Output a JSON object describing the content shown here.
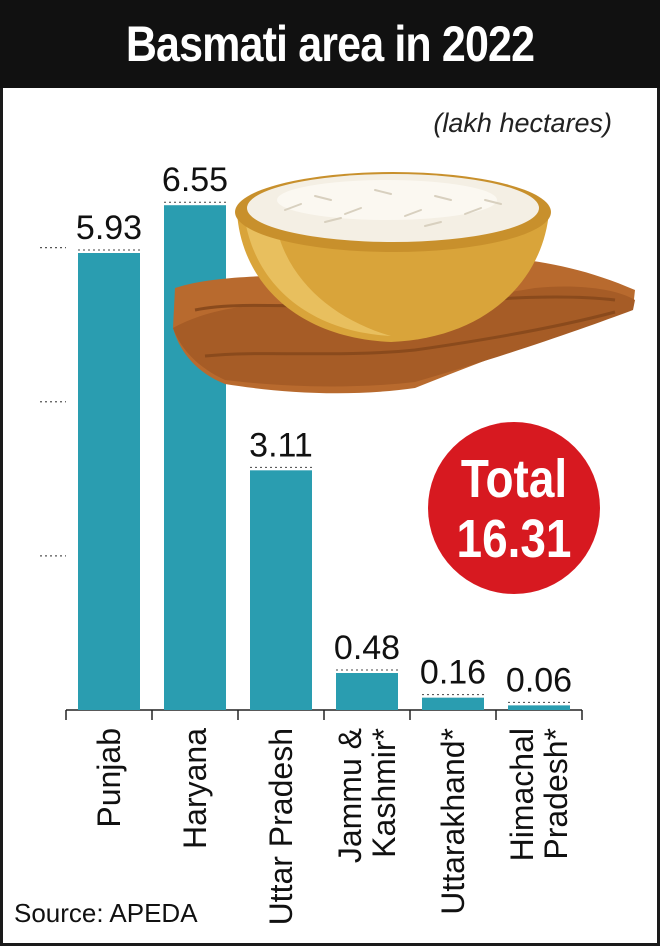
{
  "header": {
    "title": "Basmati area in 2022"
  },
  "unit_note": "(lakh hectares)",
  "total": {
    "label": "Total",
    "value": "16.31"
  },
  "source": "Source: APEDA",
  "colors": {
    "bar": "#2a9db0",
    "badge": "#d71920",
    "title_bg": "#111111"
  },
  "chart_data": {
    "type": "bar",
    "title": "Basmati area in 2022",
    "unit": "(lakh hectares)",
    "categories": [
      "Punjab",
      "Haryana",
      "Uttar Pradesh",
      "Jammu & Kashmir*",
      "Uttarakhand*",
      "Himachal Pradesh*"
    ],
    "category_lines": [
      [
        "Punjab"
      ],
      [
        "Haryana"
      ],
      [
        "Uttar Pradesh"
      ],
      [
        "Jammu &",
        "Kashmir*"
      ],
      [
        "Uttarakhand*"
      ],
      [
        "Himachal",
        "Pradesh*"
      ]
    ],
    "values": [
      5.93,
      6.55,
      3.11,
      0.48,
      0.16,
      0.06
    ],
    "value_labels": [
      "5.93",
      "6.55",
      "3.11",
      "0.48",
      "0.16",
      "0.06"
    ],
    "ylim": [
      0,
      7.5
    ],
    "grid": "dotted",
    "legend": "none"
  }
}
